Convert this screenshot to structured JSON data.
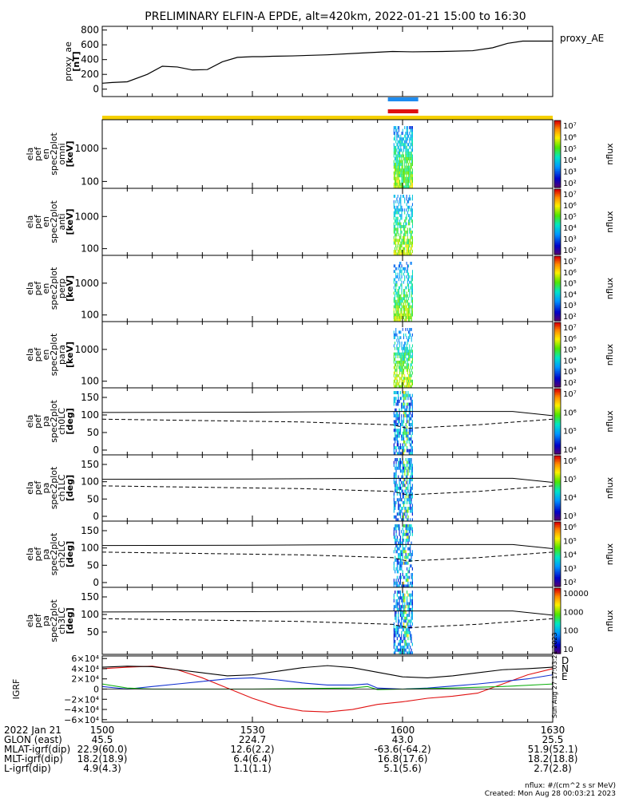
{
  "title": "PRELIMINARY ELFIN-A EPDE, alt=420km, 2022-01-21 15:00 to 16:30",
  "colors": {
    "ae_line": "#000000",
    "bar_blue": "#1e8cf0",
    "bar_red": "#e01010",
    "bar_yellow": "#f5d000",
    "igrf_d": "#e01010",
    "igrf_n": "#1030d0",
    "igrf_e": "#10b010",
    "igrf_total": "#000000"
  },
  "chart_data": [
    {
      "type": "line",
      "name": "proxy_ae",
      "legend": "proxy_AE",
      "ylabel": "proxy_ae [nT]",
      "yticks": [
        "800",
        "600",
        "400",
        "200",
        "0"
      ],
      "ylim": [
        -100,
        850
      ],
      "x_minutes": [
        0,
        2,
        5,
        9,
        12,
        15,
        18,
        21,
        24,
        27,
        30,
        32,
        34,
        38,
        45,
        52,
        58,
        62,
        68,
        74,
        78,
        81,
        84,
        87,
        90
      ],
      "y": [
        80,
        90,
        100,
        200,
        310,
        300,
        260,
        265,
        370,
        430,
        440,
        440,
        445,
        450,
        465,
        490,
        510,
        505,
        510,
        520,
        560,
        620,
        650,
        650,
        650
      ]
    },
    {
      "type": "heatmap",
      "name": "energy_spectrograms",
      "panels": [
        {
          "label": [
            "ela",
            "pef",
            "en",
            "spec2plot",
            "omni"
          ],
          "unit": "[keV]",
          "yticks": [
            "1000",
            "100"
          ]
        },
        {
          "label": [
            "ela",
            "pef",
            "en",
            "spec2plot",
            "anti"
          ],
          "unit": "[keV]",
          "yticks": [
            "1000",
            "100"
          ]
        },
        {
          "label": [
            "ela",
            "pef",
            "en",
            "spec2plot",
            "perp"
          ],
          "unit": "[keV]",
          "yticks": [
            "1000",
            "100"
          ]
        },
        {
          "label": [
            "ela",
            "pef",
            "en",
            "spec2plot",
            "para"
          ],
          "unit": "[keV]",
          "yticks": [
            "1000",
            "100"
          ]
        }
      ],
      "colorbar": {
        "title": "nflux",
        "ticks": [
          "10⁷",
          "10⁶",
          "10⁵",
          "10⁴",
          "10³",
          "10²"
        ]
      }
    },
    {
      "type": "heatmap",
      "name": "pitch_angle_spectrograms",
      "panels": [
        {
          "label": [
            "ela",
            "pef",
            "pa",
            "spec2plot",
            "ch0LC"
          ],
          "unit": "[deg]",
          "yticks": [
            "150",
            "100",
            "50",
            "0"
          ],
          "cb_title": "nflux",
          "cb_ticks": [
            "10⁷",
            "10⁶",
            "10⁵",
            "10⁴"
          ]
        },
        {
          "label": [
            "ela",
            "pef",
            "pa",
            "spec2plot",
            "ch1LC"
          ],
          "unit": "[deg]",
          "yticks": [
            "150",
            "100",
            "50",
            "0"
          ],
          "cb_title": "nflux",
          "cb_ticks": [
            "10⁶",
            "10⁵",
            "10⁴",
            "10³"
          ]
        },
        {
          "label": [
            "ela",
            "pef",
            "pa",
            "spec2plot",
            "ch2LC"
          ],
          "unit": "[deg]",
          "yticks": [
            "150",
            "100",
            "50",
            "0"
          ],
          "cb_title": "nflux",
          "cb_ticks": [
            "10⁶",
            "10⁵",
            "10⁴",
            "10³",
            "10²"
          ]
        },
        {
          "label": [
            "ela",
            "pef",
            "pa",
            "spec2plot",
            "ch3LC"
          ],
          "unit": "[deg]",
          "yticks": [
            "150",
            "100",
            "50"
          ],
          "cb_title": "nflux",
          "cb_ticks": [
            "10000",
            "1000",
            "100",
            "10"
          ]
        }
      ]
    },
    {
      "type": "line",
      "name": "igrf",
      "ylabel": "IGRF [nT]",
      "yticks": [
        "6×10⁴",
        "4×10⁴",
        "2×10⁴",
        "0",
        "−2×10⁴",
        "−4×10⁴",
        "−6×10⁴"
      ],
      "ylim": [
        -65000,
        65000
      ],
      "legend": [
        "D",
        "N",
        "E"
      ],
      "side_text": "Sun Aug 27 17:03:21 2023",
      "series": [
        {
          "name": "D",
          "x_minutes": [
            0,
            5,
            10,
            15,
            20,
            25,
            30,
            35,
            40,
            45,
            50,
            55,
            60,
            65,
            70,
            75,
            80,
            85,
            90
          ],
          "y": [
            40000,
            43000,
            45000,
            38000,
            22000,
            2000,
            -18000,
            -34000,
            -43000,
            -45000,
            -40000,
            -30000,
            -25000,
            -18000,
            -14000,
            -8000,
            10000,
            28000,
            40000
          ]
        },
        {
          "name": "N",
          "x_minutes": [
            0,
            5,
            10,
            15,
            20,
            25,
            30,
            35,
            40,
            45,
            50,
            53,
            55,
            60,
            65,
            70,
            75,
            80,
            85,
            90
          ],
          "y": [
            5000,
            0,
            5000,
            10000,
            15000,
            20000,
            22000,
            18000,
            12000,
            8000,
            8000,
            10000,
            2000,
            0,
            2000,
            6000,
            10000,
            15000,
            20000,
            28000
          ]
        },
        {
          "name": "E",
          "x_minutes": [
            0,
            5,
            10,
            20,
            30,
            40,
            50,
            53,
            55,
            60,
            70,
            80,
            90
          ],
          "y": [
            10000,
            2000,
            0,
            0,
            0,
            1000,
            2000,
            5000,
            -1000,
            0,
            2000,
            5000,
            10000
          ]
        },
        {
          "name": "total",
          "x_minutes": [
            0,
            5,
            10,
            15,
            20,
            25,
            30,
            35,
            40,
            45,
            50,
            55,
            60,
            65,
            70,
            75,
            80,
            85,
            90
          ],
          "y": [
            43000,
            45000,
            44000,
            38000,
            32000,
            26000,
            28000,
            35000,
            42000,
            46000,
            42000,
            33000,
            24000,
            22000,
            26000,
            32000,
            38000,
            40000,
            43000
          ]
        }
      ]
    }
  ],
  "xaxis": {
    "ticks": [
      {
        "min": 0,
        "lines": [
          "1500",
          "45.5",
          "22.9(60.0)",
          "18.2(18.9)",
          "4.9(4.3)"
        ]
      },
      {
        "min": 30,
        "lines": [
          "1530",
          "224.7",
          "12.6(2.2)",
          "6.4(6.4)",
          "1.1(1.1)"
        ]
      },
      {
        "min": 60,
        "lines": [
          "1600",
          "43.0",
          "-63.6(-64.2)",
          "16.8(17.6)",
          "5.1(5.6)"
        ]
      },
      {
        "min": 90,
        "lines": [
          "1630",
          "25.5",
          "51.9(52.1)",
          "18.2(18.8)",
          "2.7(2.8)"
        ]
      }
    ],
    "row_labels": [
      "2022 Jan 21",
      "GLON (east)",
      "MLAT-igrf(dip)",
      "MLT-igrf(dip)",
      "L-igrf(dip)"
    ]
  },
  "footer": {
    "units": "nflux: #/(cm^2 s sr MeV)",
    "created": "Created: Mon Aug 28 00:03:21 2023"
  }
}
